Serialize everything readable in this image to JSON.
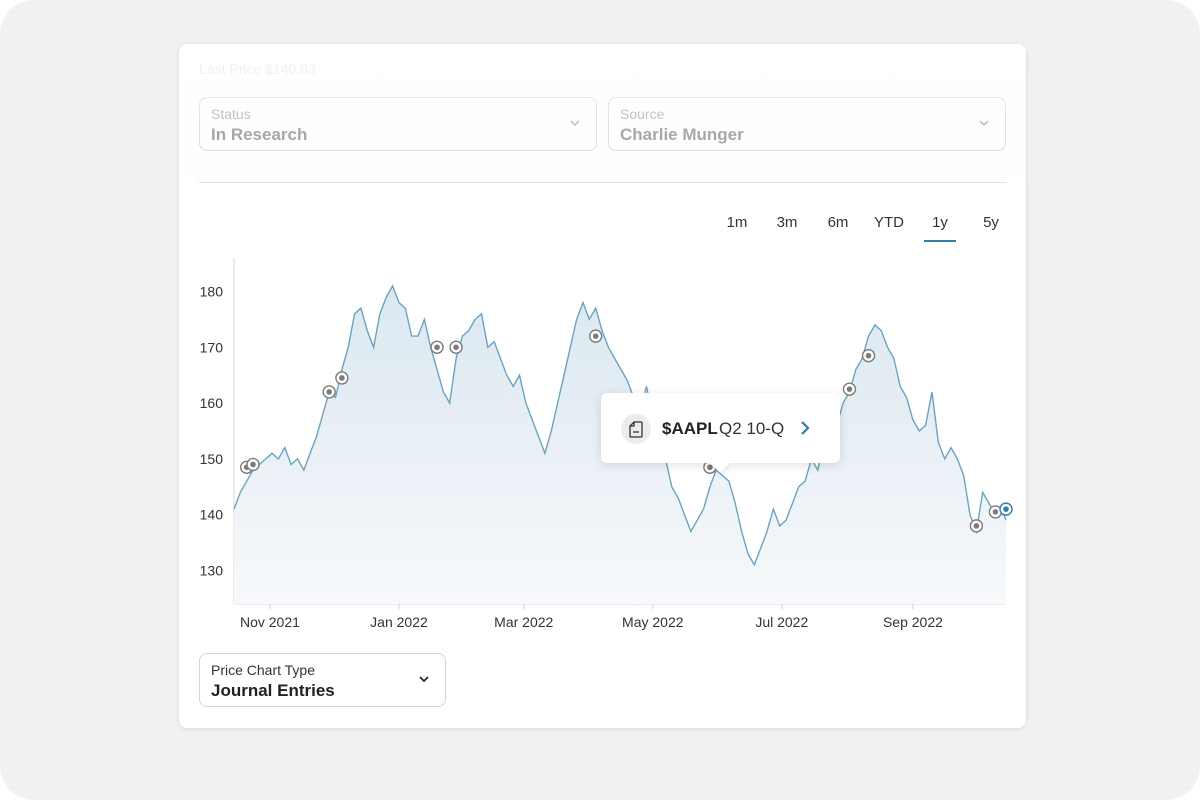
{
  "header": {
    "last_price": "Last Price $140.83"
  },
  "filters": {
    "status": {
      "label": "Status",
      "value": "In Research"
    },
    "source": {
      "label": "Source",
      "value": "Charlie Munger"
    }
  },
  "ranges": [
    {
      "label": "1m",
      "active": false
    },
    {
      "label": "3m",
      "active": false
    },
    {
      "label": "6m",
      "active": false
    },
    {
      "label": "YTD",
      "active": false
    },
    {
      "label": "1y",
      "active": true
    },
    {
      "label": "5y",
      "active": false
    }
  ],
  "tooltip": {
    "ticker": "$AAPL",
    "event": "Q2 10-Q",
    "icon": "document-icon"
  },
  "price_chart_type": {
    "label": "Price Chart Type",
    "value": "Journal Entries"
  },
  "colors": {
    "line": "#6ba3c0",
    "accent": "#2f7fa8",
    "fill_top": "#dde9f1",
    "marker": "#7b7b7b"
  },
  "chart_data": {
    "type": "area",
    "ylim": [
      124,
      186
    ],
    "yticks": [
      130,
      140,
      150,
      160,
      170,
      180
    ],
    "xlim": [
      "2021-10-15",
      "2022-10-15"
    ],
    "xticks": [
      {
        "date": "2021-11-01",
        "label": "Nov 2021"
      },
      {
        "date": "2022-01-01",
        "label": "Jan 2022"
      },
      {
        "date": "2022-03-01",
        "label": "Mar 2022"
      },
      {
        "date": "2022-05-01",
        "label": "May 2022"
      },
      {
        "date": "2022-07-01",
        "label": "Jul 2022"
      },
      {
        "date": "2022-09-01",
        "label": "Sep 2022"
      }
    ],
    "series": [
      {
        "points": [
          [
            "2021-10-15",
            141
          ],
          [
            "2021-10-18",
            144
          ],
          [
            "2021-10-21",
            146
          ],
          [
            "2021-10-24",
            148
          ],
          [
            "2021-10-27",
            149
          ],
          [
            "2021-10-30",
            150
          ],
          [
            "2021-11-02",
            151
          ],
          [
            "2021-11-05",
            150
          ],
          [
            "2021-11-08",
            152
          ],
          [
            "2021-11-11",
            149
          ],
          [
            "2021-11-14",
            150
          ],
          [
            "2021-11-17",
            148
          ],
          [
            "2021-11-20",
            151
          ],
          [
            "2021-11-23",
            154
          ],
          [
            "2021-11-26",
            158
          ],
          [
            "2021-11-29",
            162
          ],
          [
            "2021-12-02",
            161
          ],
          [
            "2021-12-05",
            166
          ],
          [
            "2021-12-08",
            170
          ],
          [
            "2021-12-11",
            176
          ],
          [
            "2021-12-14",
            177
          ],
          [
            "2021-12-17",
            173
          ],
          [
            "2021-12-20",
            170
          ],
          [
            "2021-12-23",
            176
          ],
          [
            "2021-12-26",
            179
          ],
          [
            "2021-12-29",
            181
          ],
          [
            "2022-01-01",
            178
          ],
          [
            "2022-01-04",
            177
          ],
          [
            "2022-01-07",
            172
          ],
          [
            "2022-01-10",
            172
          ],
          [
            "2022-01-13",
            175
          ],
          [
            "2022-01-16",
            170
          ],
          [
            "2022-01-19",
            166
          ],
          [
            "2022-01-22",
            162
          ],
          [
            "2022-01-25",
            160
          ],
          [
            "2022-01-28",
            168
          ],
          [
            "2022-01-31",
            172
          ],
          [
            "2022-02-03",
            173
          ],
          [
            "2022-02-06",
            175
          ],
          [
            "2022-02-09",
            176
          ],
          [
            "2022-02-12",
            170
          ],
          [
            "2022-02-15",
            171
          ],
          [
            "2022-02-18",
            168
          ],
          [
            "2022-02-21",
            165
          ],
          [
            "2022-02-24",
            163
          ],
          [
            "2022-02-27",
            165
          ],
          [
            "2022-03-02",
            160
          ],
          [
            "2022-03-05",
            157
          ],
          [
            "2022-03-08",
            154
          ],
          [
            "2022-03-11",
            151
          ],
          [
            "2022-03-14",
            155
          ],
          [
            "2022-03-17",
            160
          ],
          [
            "2022-03-20",
            165
          ],
          [
            "2022-03-23",
            170
          ],
          [
            "2022-03-26",
            175
          ],
          [
            "2022-03-29",
            178
          ],
          [
            "2022-04-01",
            175
          ],
          [
            "2022-04-04",
            177
          ],
          [
            "2022-04-07",
            173
          ],
          [
            "2022-04-10",
            170
          ],
          [
            "2022-04-13",
            168
          ],
          [
            "2022-04-16",
            166
          ],
          [
            "2022-04-19",
            164
          ],
          [
            "2022-04-22",
            161
          ],
          [
            "2022-04-25",
            158
          ],
          [
            "2022-04-28",
            163
          ],
          [
            "2022-05-01",
            158
          ],
          [
            "2022-05-04",
            155
          ],
          [
            "2022-05-07",
            150
          ],
          [
            "2022-05-10",
            145
          ],
          [
            "2022-05-13",
            143
          ],
          [
            "2022-05-16",
            140
          ],
          [
            "2022-05-19",
            137
          ],
          [
            "2022-05-22",
            139
          ],
          [
            "2022-05-25",
            141
          ],
          [
            "2022-05-28",
            145
          ],
          [
            "2022-05-31",
            148
          ],
          [
            "2022-06-03",
            147
          ],
          [
            "2022-06-06",
            146
          ],
          [
            "2022-06-09",
            142
          ],
          [
            "2022-06-12",
            137
          ],
          [
            "2022-06-15",
            133
          ],
          [
            "2022-06-18",
            131
          ],
          [
            "2022-06-21",
            134
          ],
          [
            "2022-06-24",
            137
          ],
          [
            "2022-06-27",
            141
          ],
          [
            "2022-06-30",
            138
          ],
          [
            "2022-07-03",
            139
          ],
          [
            "2022-07-06",
            142
          ],
          [
            "2022-07-09",
            145
          ],
          [
            "2022-07-12",
            146
          ],
          [
            "2022-07-15",
            150
          ],
          [
            "2022-07-18",
            148
          ],
          [
            "2022-07-21",
            153
          ],
          [
            "2022-07-24",
            152
          ],
          [
            "2022-07-27",
            156
          ],
          [
            "2022-07-30",
            160
          ],
          [
            "2022-08-02",
            162
          ],
          [
            "2022-08-05",
            166
          ],
          [
            "2022-08-08",
            168
          ],
          [
            "2022-08-11",
            172
          ],
          [
            "2022-08-14",
            174
          ],
          [
            "2022-08-17",
            173
          ],
          [
            "2022-08-20",
            170
          ],
          [
            "2022-08-23",
            168
          ],
          [
            "2022-08-26",
            163
          ],
          [
            "2022-08-29",
            161
          ],
          [
            "2022-09-01",
            157
          ],
          [
            "2022-09-04",
            155
          ],
          [
            "2022-09-07",
            156
          ],
          [
            "2022-09-10",
            162
          ],
          [
            "2022-09-13",
            153
          ],
          [
            "2022-09-16",
            150
          ],
          [
            "2022-09-19",
            152
          ],
          [
            "2022-09-22",
            150
          ],
          [
            "2022-09-25",
            147
          ],
          [
            "2022-09-28",
            140
          ],
          [
            "2022-10-01",
            137
          ],
          [
            "2022-10-04",
            144
          ],
          [
            "2022-10-07",
            142
          ],
          [
            "2022-10-10",
            140
          ],
          [
            "2022-10-13",
            141
          ],
          [
            "2022-10-15",
            139
          ]
        ]
      }
    ],
    "journal_markers": [
      {
        "date": "2021-10-21",
        "value": 148.5
      },
      {
        "date": "2021-10-24",
        "value": 149
      },
      {
        "date": "2021-11-29",
        "value": 162
      },
      {
        "date": "2021-12-05",
        "value": 164.5
      },
      {
        "date": "2022-01-19",
        "value": 170
      },
      {
        "date": "2022-01-28",
        "value": 170
      },
      {
        "date": "2022-04-04",
        "value": 172
      },
      {
        "date": "2022-05-28",
        "value": 148.5
      },
      {
        "date": "2022-07-24",
        "value": 151.5
      },
      {
        "date": "2022-08-02",
        "value": 162.5
      },
      {
        "date": "2022-08-11",
        "value": 168.5
      },
      {
        "date": "2022-10-01",
        "value": 138
      },
      {
        "date": "2022-10-10",
        "value": 140.5
      },
      {
        "date": "2022-10-15",
        "value": 141
      }
    ]
  }
}
